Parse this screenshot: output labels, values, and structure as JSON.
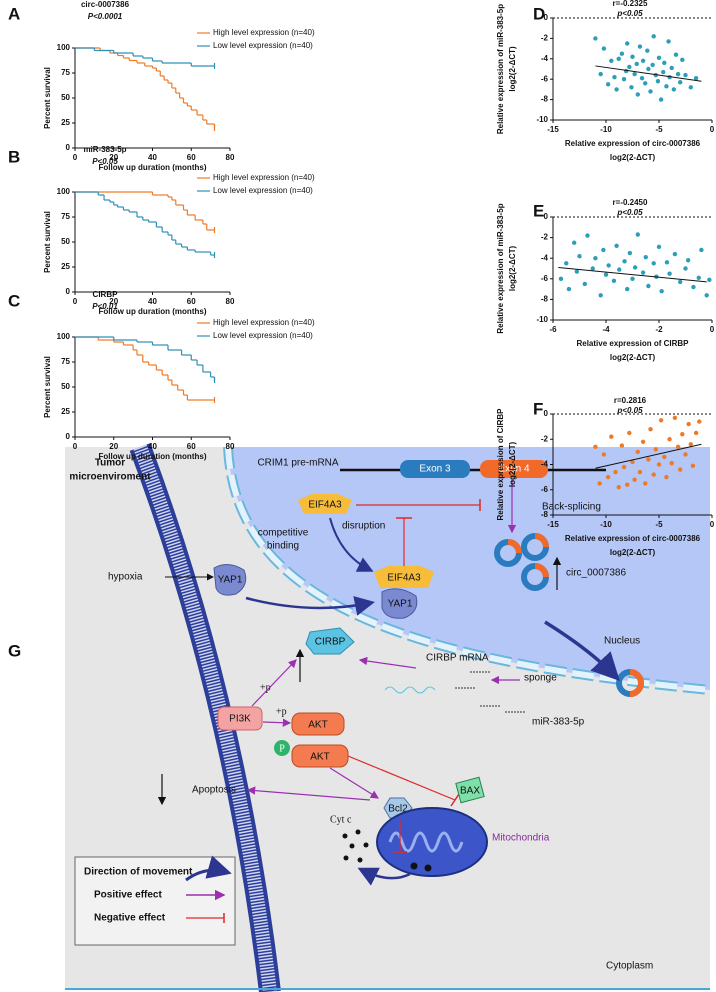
{
  "chart_data": [
    {
      "type": "survival",
      "panel": "A",
      "title": "circ-0007386",
      "subtitle": "P<0.0001",
      "xlabel": [
        "Follow up duration (months)"
      ],
      "ylabel": [
        "Percent survival"
      ],
      "xlim": [
        0,
        80
      ],
      "xticks": [
        0,
        20,
        40,
        60,
        80
      ],
      "ylim": [
        0,
        100
      ],
      "yticks": [
        0,
        25,
        50,
        75,
        100
      ],
      "series": [
        {
          "name": "High level expression (n=40)",
          "color": "#f07a24",
          "x": [
            0,
            13,
            18,
            22,
            25,
            28,
            32,
            36,
            40,
            42,
            44,
            46,
            48,
            50,
            52,
            54,
            56,
            58,
            60,
            63,
            66,
            68,
            72
          ],
          "values": [
            100,
            97.5,
            95,
            92.5,
            90,
            87.5,
            85,
            82,
            80,
            77,
            72,
            68,
            65,
            60,
            55,
            50,
            45,
            42,
            38,
            33,
            28,
            24,
            20
          ]
        },
        {
          "name": "Low level expression (n=40)",
          "color": "#2e8fb7",
          "x": [
            0,
            10,
            20,
            30,
            35,
            40,
            45,
            60,
            72
          ],
          "values": [
            100,
            97.5,
            95,
            92,
            90,
            87,
            85,
            82,
            82
          ]
        }
      ]
    },
    {
      "type": "survival",
      "panel": "B",
      "title": "miR-383-5p",
      "subtitle": "P<0.05",
      "xlabel": [
        "Follow up duration (months)"
      ],
      "ylabel": [
        "Percent survival"
      ],
      "xlim": [
        0,
        80
      ],
      "xticks": [
        0,
        20,
        40,
        60,
        80
      ],
      "ylim": [
        0,
        100
      ],
      "yticks": [
        0,
        25,
        50,
        75,
        100
      ],
      "series": [
        {
          "name": "High level expression (n=40)",
          "color": "#f07a24",
          "x": [
            0,
            40,
            48,
            50,
            52,
            56,
            58,
            62,
            66,
            68,
            72
          ],
          "values": [
            100,
            97,
            95,
            92,
            87,
            82,
            77,
            72,
            68,
            62,
            62
          ]
        },
        {
          "name": "Low level expression (n=40)",
          "color": "#2e8fb7",
          "x": [
            0,
            12,
            15,
            18,
            20,
            22,
            25,
            28,
            32,
            35,
            38,
            42,
            45,
            48,
            50,
            52,
            55,
            58,
            62,
            70,
            72
          ],
          "values": [
            100,
            97,
            92,
            90,
            87,
            85,
            82,
            80,
            75,
            72,
            70,
            65,
            60,
            57,
            52,
            48,
            45,
            42,
            40,
            37,
            37
          ]
        }
      ]
    },
    {
      "type": "survival",
      "panel": "C",
      "title": "CIRBP",
      "subtitle": "P<0.01",
      "xlabel": [
        "Follow up duration (months)"
      ],
      "ylabel": [
        "Percent survival"
      ],
      "xlim": [
        0,
        80
      ],
      "xticks": [
        0,
        20,
        40,
        60,
        80
      ],
      "ylim": [
        0,
        100
      ],
      "yticks": [
        0,
        25,
        50,
        75,
        100
      ],
      "series": [
        {
          "name": "High level expression (n=40)",
          "color": "#f07a24",
          "x": [
            0,
            12,
            20,
            25,
            30,
            32,
            35,
            38,
            42,
            45,
            48,
            50,
            53,
            56,
            58,
            72
          ],
          "values": [
            100,
            97,
            95,
            92,
            87,
            82,
            75,
            72,
            67,
            62,
            57,
            52,
            47,
            42,
            37,
            37
          ]
        },
        {
          "name": "Low level expression (n=40)",
          "color": "#2e8fb7",
          "x": [
            0,
            20,
            32,
            40,
            48,
            55,
            60,
            63,
            66,
            70,
            72
          ],
          "values": [
            100,
            97,
            95,
            92,
            87,
            82,
            77,
            72,
            65,
            60,
            57
          ]
        }
      ]
    },
    {
      "type": "scatter",
      "panel": "D",
      "title": "r=-0.2325",
      "subtitle": "p<0.05",
      "xlabel": [
        "Relative expression of circ-0007386",
        "log2(2-ΔCT)"
      ],
      "ylabel": [
        "Relative expression of miR-383-5p",
        "log2(2-ΔCT)"
      ],
      "xlim": [
        -15,
        0
      ],
      "xticks": [
        -15,
        -10,
        -5,
        0
      ],
      "ylim": [
        -10,
        0
      ],
      "yticks": [
        -10,
        -8,
        -6,
        -4,
        -2,
        0
      ],
      "color": "#2a9fb5",
      "x": [
        -11,
        -10.5,
        -10.2,
        -9.8,
        -9.5,
        -9.2,
        -9,
        -8.8,
        -8.5,
        -8.3,
        -8.1,
        -8,
        -7.8,
        -7.6,
        -7.5,
        -7.3,
        -7.1,
        -7,
        -6.8,
        -6.6,
        -6.5,
        -6.3,
        -6.1,
        -6,
        -5.8,
        -5.6,
        -5.5,
        -5.3,
        -5.1,
        -5,
        -4.8,
        -4.6,
        -4.5,
        -4.3,
        -4.1,
        -4,
        -3.8,
        -3.6,
        -3.4,
        -3.2,
        -3,
        -2.8,
        -2.5,
        -2,
        -1.5
      ],
      "values": [
        -2,
        -5.5,
        -3,
        -6.5,
        -4.2,
        -5.8,
        -7,
        -4,
        -3.5,
        -6,
        -5.2,
        -2.5,
        -4.8,
        -6.8,
        -3.8,
        -5.5,
        -4.5,
        -7.5,
        -2.8,
        -5.9,
        -4.2,
        -6.4,
        -3.2,
        -5,
        -7.2,
        -4.6,
        -1.8,
        -5.6,
        -6.2,
        -3.9,
        -8,
        -5.3,
        -4.4,
        -6.7,
        -2.3,
        -5.8,
        -4.9,
        -7,
        -3.6,
        -5.5,
        -6.3,
        -4.1,
        -5.6,
        -6.8,
        -5.9
      ],
      "trend": {
        "x": [
          -11,
          -1
        ],
        "values": [
          -4.7,
          -6.2
        ]
      }
    },
    {
      "type": "scatter",
      "panel": "E",
      "title": "r=-0.2450",
      "subtitle": "p<0.05",
      "xlabel": [
        "Relative expression of CIRBP",
        "log2(2-ΔCT)"
      ],
      "ylabel": [
        "Relative expression of miR-383-5p",
        "log2(2-ΔCT)"
      ],
      "xlim": [
        -6,
        0
      ],
      "xticks": [
        -6,
        -4,
        -2,
        0
      ],
      "ylim": [
        -10,
        0
      ],
      "yticks": [
        -10,
        -8,
        -6,
        -4,
        -2,
        0
      ],
      "color": "#2a9fb5",
      "x": [
        -5.7,
        -5.5,
        -5.4,
        -5.2,
        -5.1,
        -5,
        -4.8,
        -4.7,
        -4.5,
        -4.4,
        -4.2,
        -4.1,
        -4,
        -3.9,
        -3.7,
        -3.6,
        -3.5,
        -3.3,
        -3.2,
        -3.1,
        -3,
        -2.9,
        -2.8,
        -2.6,
        -2.5,
        -2.4,
        -2.2,
        -2.1,
        -2,
        -1.9,
        -1.7,
        -1.6,
        -1.4,
        -1.2,
        -1,
        -0.9,
        -0.7,
        -0.5,
        -0.4,
        -0.2,
        -0.1
      ],
      "values": [
        -6,
        -4.5,
        -7,
        -2.5,
        -5.3,
        -3.8,
        -6.5,
        -1.8,
        -5,
        -4,
        -7.6,
        -3.2,
        -5.6,
        -4.7,
        -6.2,
        -2.8,
        -5.1,
        -4.3,
        -7,
        -3.5,
        -6,
        -4.9,
        -1.7,
        -5.4,
        -3.9,
        -6.7,
        -4.5,
        -5.8,
        -2.9,
        -7.2,
        -4.4,
        -5.5,
        -3.6,
        -6.3,
        -5,
        -4.2,
        -6.8,
        -5.9,
        -3.2,
        -7.6,
        -6.1
      ],
      "trend": {
        "x": [
          -5.8,
          -0.2
        ],
        "values": [
          -4.9,
          -6.3
        ]
      }
    },
    {
      "type": "scatter",
      "panel": "F",
      "title": "r=0.2816",
      "subtitle": "p<0.05",
      "xlabel": [
        "Relative expression of circ-0007386",
        "log2(2-ΔCT)"
      ],
      "ylabel": [
        "Relative expression of CIRBP",
        "log2(2-ΔCT)"
      ],
      "xlim": [
        -15,
        0
      ],
      "xticks": [
        -15,
        -10,
        -5,
        0
      ],
      "ylim": [
        -8,
        0
      ],
      "yticks": [
        -8,
        -6,
        -4,
        -2,
        0
      ],
      "color": "#f07a24",
      "x": [
        -11,
        -10.6,
        -10.2,
        -9.8,
        -9.5,
        -9.1,
        -8.8,
        -8.5,
        -8.3,
        -8,
        -7.8,
        -7.5,
        -7.3,
        -7,
        -6.8,
        -6.5,
        -6.3,
        -6,
        -5.8,
        -5.5,
        -5.3,
        -5,
        -4.8,
        -4.5,
        -4.3,
        -4,
        -3.8,
        -3.5,
        -3.2,
        -3,
        -2.8,
        -2.5,
        -2.2,
        -2,
        -1.8,
        -1.5,
        -1.2
      ],
      "values": [
        -2.6,
        -5.5,
        -3.2,
        -5,
        -1.8,
        -4.6,
        -5.8,
        -2.5,
        -4.2,
        -5.6,
        -1.5,
        -3.8,
        -5.2,
        -3,
        -4.6,
        -2.2,
        -5.5,
        -3.6,
        -1.2,
        -4.8,
        -2.8,
        -4,
        -0.5,
        -3.4,
        -5,
        -2,
        -3.9,
        -0.3,
        -2.6,
        -4.4,
        -1.6,
        -3.2,
        -0.8,
        -2.4,
        -4.1,
        -1.5,
        -0.6
      ],
      "trend": {
        "x": [
          -11,
          -1
        ],
        "values": [
          -4.3,
          -2.4
        ]
      }
    }
  ],
  "diagram": {
    "panel": "G",
    "labels": {
      "tumor": "Tumor",
      "microenv": "microenviroment",
      "crim1": "CRIM1 pre-mRNA",
      "exon3": "Exon 3",
      "exon4": "Exon 4",
      "eif_top": "EIF4A3",
      "eif_bottom": "EIF4A3",
      "competitive": "competitive",
      "binding": "binding",
      "disruption": "disruption",
      "back_splicing": "Back-splicing",
      "circ": "circ_0007386",
      "hypoxia": "hypoxia",
      "yap_left": "YAP1",
      "yap_right": "YAP1",
      "nucleus": "Nucleus",
      "cirbp": "CIRBP",
      "cirbp_mrna": "CIRBP mRNA",
      "sponge": "sponge",
      "mir": "miR-383-5p",
      "plus_p_1": "+p",
      "plus_p_2": "+p",
      "pi3k": "PI3K",
      "akt_1": "AKT",
      "akt_2": "AKT",
      "p": "P",
      "apoptosis": "Apoptosis",
      "cyt_c": "Cyt c",
      "bcl2": "Bcl2",
      "bax": "BAX",
      "mitochondria": "Mitochondria",
      "cytoplasm": "Cytoplasm",
      "legend_movement": "Direction of movement",
      "legend_positive": "Positive effect",
      "legend_negative": "Negative effect"
    }
  }
}
